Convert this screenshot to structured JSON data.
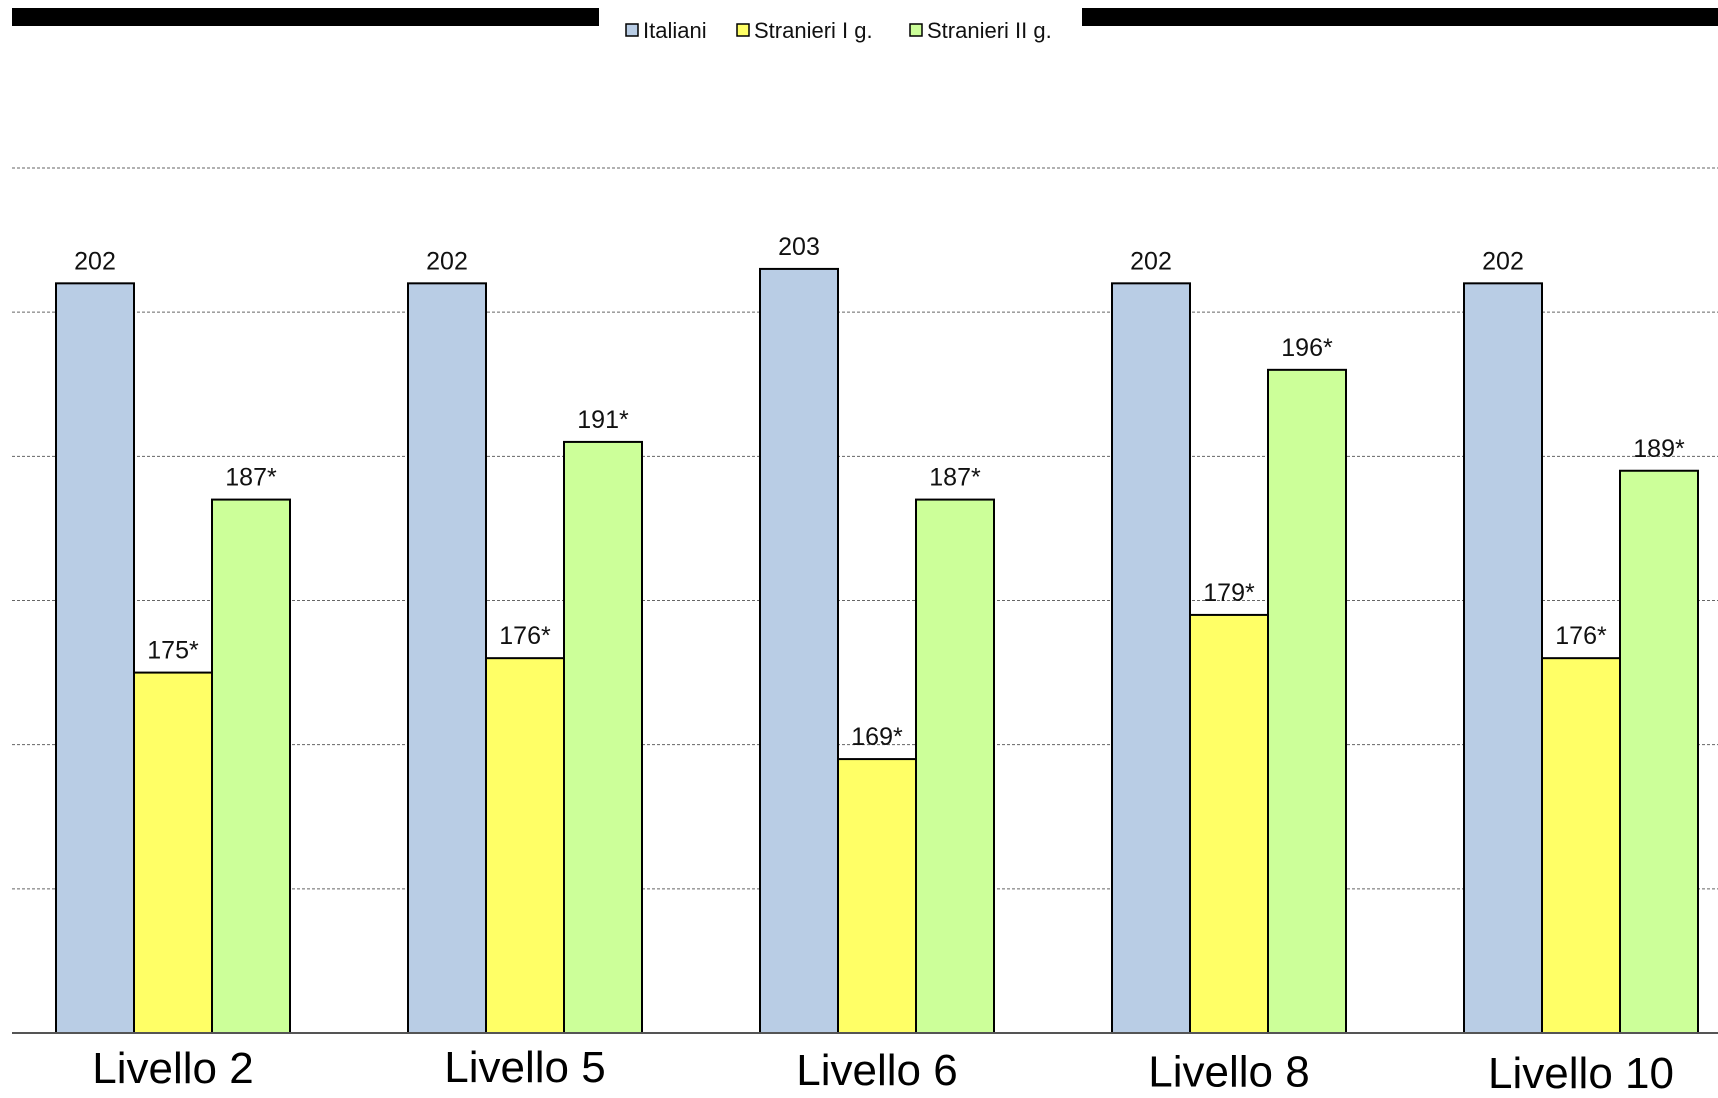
{
  "chart_data": {
    "type": "bar",
    "categories": [
      "Livello 2",
      "Livello 5",
      "Livello 6",
      "Livello 8",
      "Livello 10"
    ],
    "series": [
      {
        "name": "Italiani",
        "color": "#b9cde5",
        "values": [
          202,
          202,
          203,
          202,
          202
        ],
        "labels": [
          "202",
          "202",
          "203",
          "202",
          "202"
        ]
      },
      {
        "name": "Stranieri I g.",
        "color": "#ffff66",
        "values": [
          175,
          176,
          169,
          179,
          176
        ],
        "labels": [
          "175*",
          "176*",
          "169*",
          "179*",
          "176*"
        ]
      },
      {
        "name": "Stranieri II g.",
        "color": "#ccff99",
        "values": [
          187,
          191,
          187,
          196,
          189
        ],
        "labels": [
          "187*",
          "191*",
          "187*",
          "196*",
          "189*"
        ]
      }
    ],
    "ylim": [
      150,
      210
    ],
    "grid": true,
    "legend_position": "top-center"
  }
}
